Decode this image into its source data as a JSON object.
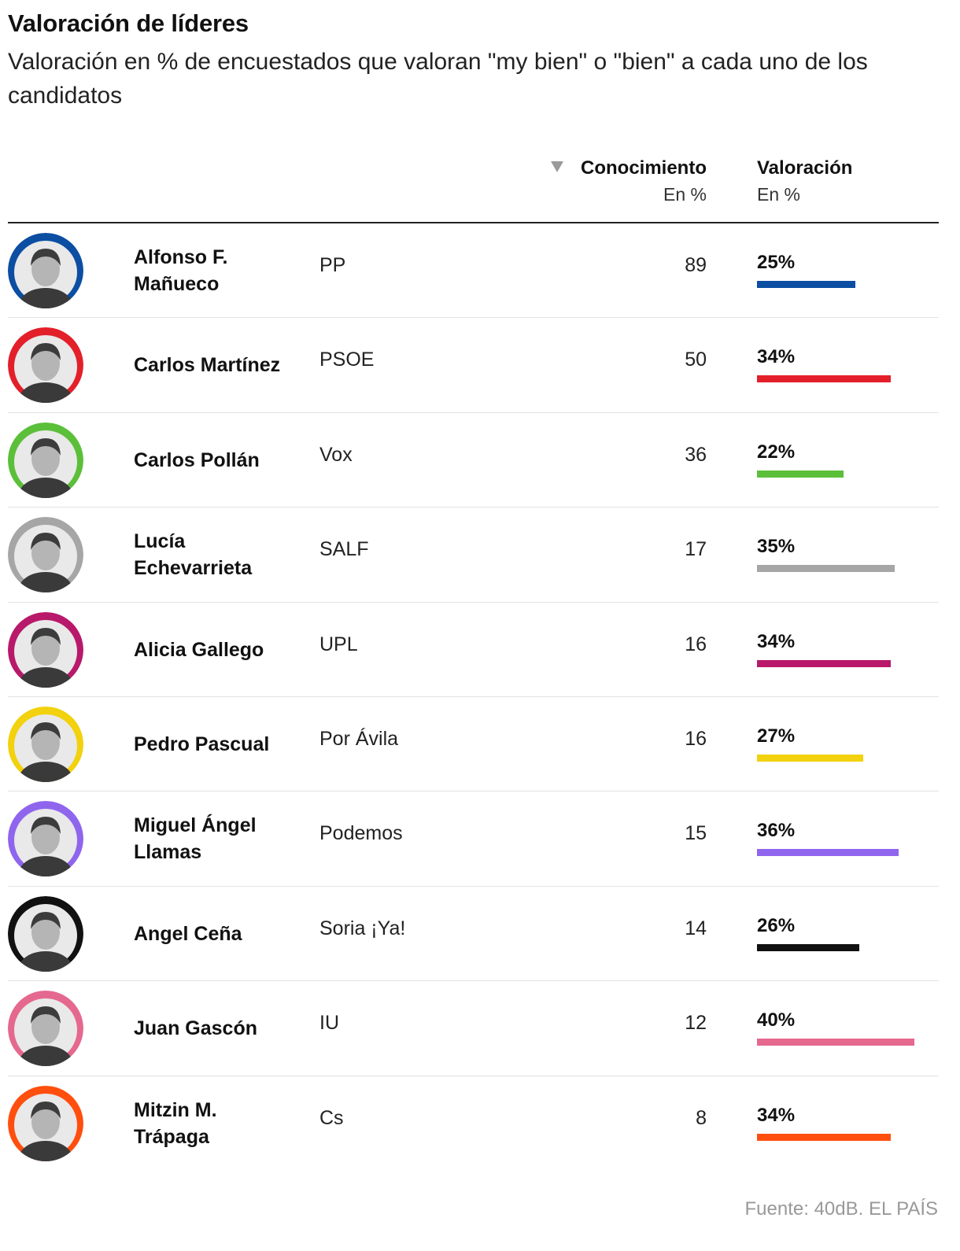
{
  "header": {
    "title": "Valoración de líderes",
    "subtitle": "Valoración en % de encuestados que valoran \"my bien\" o \"bien\" a cada uno de los candidatos"
  },
  "columns": {
    "conocimiento": "Conocimiento",
    "conocimiento_unit": "En %",
    "valoracion": "Valoración",
    "valoracion_unit": "En %"
  },
  "source": "Fuente: 40dB. EL PAÍS",
  "chart_data": {
    "type": "table",
    "sort_column": "Conocimiento",
    "sort_order": "descending",
    "max_bar_value": 40,
    "rows": [
      {
        "name": "Alfonso F. Mañueco",
        "party": "PP",
        "conocimiento": 89,
        "valoracion": 25,
        "color": "#0b4ea2"
      },
      {
        "name": "Carlos Martínez",
        "party": "PSOE",
        "conocimiento": 50,
        "valoracion": 34,
        "color": "#e3202a"
      },
      {
        "name": "Carlos Pollán",
        "party": "Vox",
        "conocimiento": 36,
        "valoracion": 22,
        "color": "#5bbf3a"
      },
      {
        "name": "Lucía Echevarrieta",
        "party": "SALF",
        "conocimiento": 17,
        "valoracion": 35,
        "color": "#a6a6a6"
      },
      {
        "name": "Alicia Gallego",
        "party": "UPL",
        "conocimiento": 16,
        "valoracion": 34,
        "color": "#b8196a"
      },
      {
        "name": "Pedro Pascual",
        "party": "Por Ávila",
        "conocimiento": 16,
        "valoracion": 27,
        "color": "#f2d10e"
      },
      {
        "name": "Miguel Ángel Llamas",
        "party": "Podemos",
        "conocimiento": 15,
        "valoracion": 36,
        "color": "#8f65ee"
      },
      {
        "name": "Angel Ceña",
        "party": "Soria ¡Ya!",
        "conocimiento": 14,
        "valoracion": 26,
        "color": "#111111"
      },
      {
        "name": "Juan Gascón",
        "party": "IU",
        "conocimiento": 12,
        "valoracion": 40,
        "color": "#e5688e"
      },
      {
        "name": "Mitzin M. Trápaga",
        "party": "Cs",
        "conocimiento": 8,
        "valoracion": 34,
        "color": "#ff4f0f"
      }
    ]
  }
}
